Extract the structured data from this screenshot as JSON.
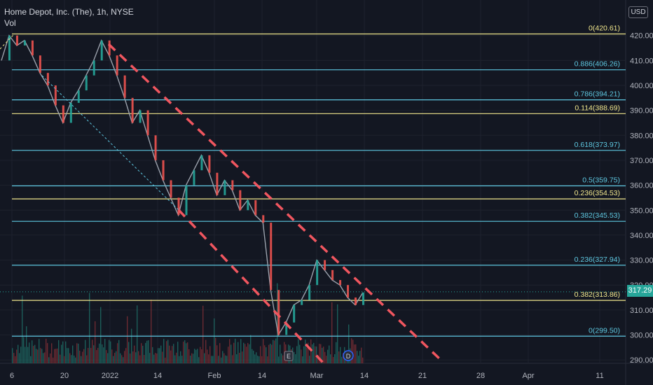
{
  "header": {
    "title": "Home Depot, Inc. (The), 1h, NYSE",
    "volume_label": "Vol",
    "currency": "USD"
  },
  "last_price": "317.29",
  "colors": {
    "background": "#131722",
    "up": "#26a69a",
    "down": "#ef5350",
    "fib_cyan": "#5ec7e0",
    "fib_yellow": "#f0e68c",
    "trend": "#f0565f"
  },
  "chart_data": {
    "type": "line",
    "title": "Home Depot, Inc. (The), 1h, NYSE",
    "xlabel": "",
    "ylabel": "",
    "ylim": [
      286,
      425
    ],
    "grid": true,
    "x_tick_labels": [
      "6",
      "20",
      "2022",
      "14",
      "Feb",
      "14",
      "Mar",
      "14",
      "21",
      "28",
      "Apr",
      "11"
    ],
    "y_ticks": [
      290,
      300,
      310,
      320,
      330,
      340,
      350,
      360,
      370,
      380,
      390,
      400,
      410,
      420
    ],
    "series": [
      {
        "values": [
          410,
          420,
          416,
          418,
          412,
          405,
          400,
          392,
          385,
          393,
          398,
          404,
          410,
          418,
          412,
          404,
          395,
          385,
          390,
          380,
          370,
          362,
          355,
          348,
          360,
          366,
          372,
          365,
          356,
          362,
          358,
          350,
          354,
          348,
          345,
          318,
          300,
          305,
          312,
          314,
          320,
          330,
          326,
          322,
          320,
          315,
          312,
          317
        ]
      }
    ],
    "fib_levels": [
      {
        "label": "0(420.61)",
        "value": 420.61,
        "color": "yellow"
      },
      {
        "label": "0.886(406.26)",
        "value": 406.26,
        "color": "cyan"
      },
      {
        "label": "0.786(394.21)",
        "value": 394.21,
        "color": "cyan"
      },
      {
        "label": "0.114(388.69)",
        "value": 388.69,
        "color": "yellow"
      },
      {
        "label": "0.618(373.97)",
        "value": 373.97,
        "color": "cyan"
      },
      {
        "label": "0.5(359.75)",
        "value": 359.75,
        "color": "cyan"
      },
      {
        "label": "0.236(354.53)",
        "value": 354.53,
        "color": "yellow"
      },
      {
        "label": "0.382(345.53)",
        "value": 345.53,
        "color": "cyan"
      },
      {
        "label": "0.236(327.94)",
        "value": 327.94,
        "color": "cyan"
      },
      {
        "label": "0.382(313.86)",
        "value": 313.86,
        "color": "yellow"
      },
      {
        "label": "0(299.50)",
        "value": 299.5,
        "color": "cyan"
      }
    ],
    "event_markers": [
      "E",
      "D"
    ]
  }
}
